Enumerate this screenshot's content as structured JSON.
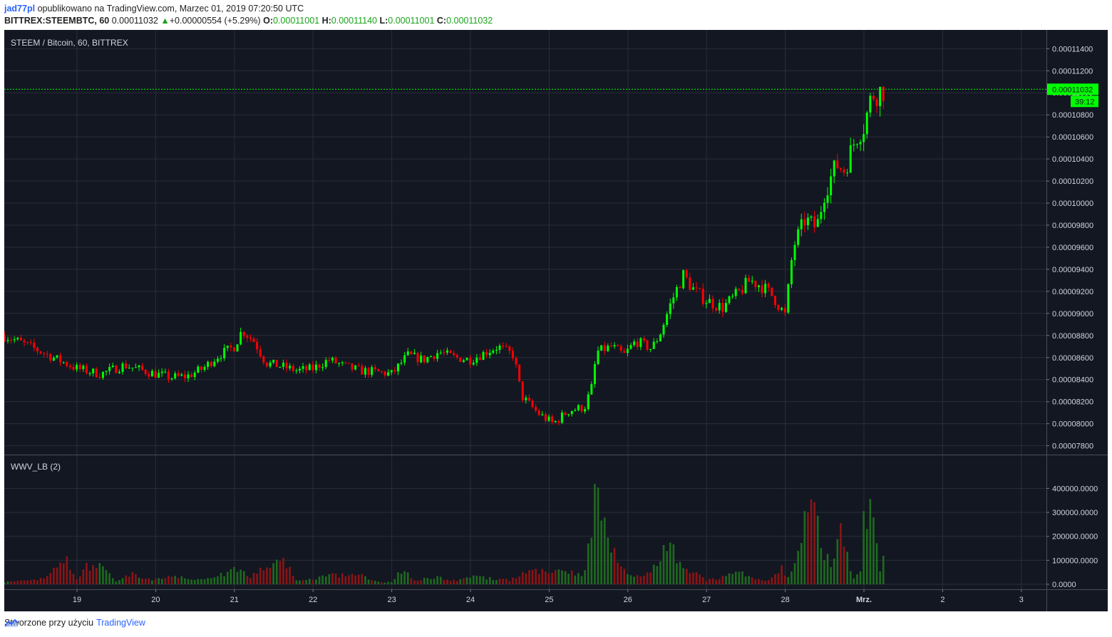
{
  "header": {
    "author": "jad77pl",
    "published": "opublikowano na TradingView.com, Marzec 01, 2019 07:20:50 UTC",
    "symbol": "BITTREX:STEEMBTC, 60",
    "last": "0.00011032",
    "change": "+0.00000554 (+5.29%)",
    "o_label": "O:",
    "o_value": "0.00011001",
    "h_label": "H:",
    "h_value": "0.00011140",
    "l_label": "L:",
    "l_value": "0.00011001",
    "c_label": "C:",
    "c_value": "0.00011032"
  },
  "footer": {
    "made_with": "Stworzone przy użyciu",
    "brand": "TradingView"
  },
  "colors": {
    "bg": "#131722",
    "grid": "#2a2e39",
    "up": "#00ff00",
    "down": "#ff0000",
    "vol_up": "#1e6b1e",
    "vol_down": "#8b1515",
    "text": "#d1d4dc"
  },
  "chart_data": {
    "type": "candlestick",
    "title": "STEEM / Bitcoin, 60, BITTREX",
    "price_axis_ticks": [
      "0.00011400",
      "0.00011200",
      "0.00011000",
      "0.00010800",
      "0.00010600",
      "0.00010400",
      "0.00010200",
      "0.00010000",
      "0.00009800",
      "0.00009600",
      "0.00009400",
      "0.00009200",
      "0.00009000",
      "0.00008800",
      "0.00008600",
      "0.00008400",
      "0.00008200",
      "0.00008000",
      "0.00007800"
    ],
    "price_ylim": [
      7.72e-05,
      0.0001157
    ],
    "last_price_label": "0.00011032",
    "last_price": 0.00011032,
    "countdown_label": "39:12",
    "x_ticks": [
      "19",
      "20",
      "21",
      "22",
      "23",
      "24",
      "25",
      "26",
      "27",
      "28",
      "Mrz.",
      "2",
      "3"
    ],
    "x_tick_day_offsets": [
      0,
      1,
      2,
      3,
      4,
      5,
      6,
      7,
      8,
      9,
      10,
      11,
      12
    ],
    "xlim_days": [
      -0.92,
      12.55
    ],
    "price_keypoints": [
      [
        -0.92,
        8.8e-05
      ],
      [
        -0.6,
        8.7e-05
      ],
      [
        -0.3,
        8.6e-05
      ],
      [
        0,
        8.5e-05
      ],
      [
        0.3,
        8.45e-05
      ],
      [
        0.6,
        8.53e-05
      ],
      [
        1.0,
        8.45e-05
      ],
      [
        1.2,
        8.42e-05
      ],
      [
        1.4,
        8.43e-05
      ],
      [
        1.6,
        8.5e-05
      ],
      [
        1.8,
        8.62e-05
      ],
      [
        2.0,
        8.7e-05
      ],
      [
        2.1,
        8.85e-05
      ],
      [
        2.25,
        8.75e-05
      ],
      [
        2.4,
        8.55e-05
      ],
      [
        2.6,
        8.52e-05
      ],
      [
        2.8,
        8.48e-05
      ],
      [
        3.0,
        8.5e-05
      ],
      [
        3.2,
        8.58e-05
      ],
      [
        3.4,
        8.52e-05
      ],
      [
        3.6,
        8.48e-05
      ],
      [
        3.8,
        8.47e-05
      ],
      [
        4.0,
        8.45e-05
      ],
      [
        4.2,
        8.62e-05
      ],
      [
        4.4,
        8.58e-05
      ],
      [
        4.6,
        8.65e-05
      ],
      [
        4.8,
        8.6e-05
      ],
      [
        5.0,
        8.58e-05
      ],
      [
        5.2,
        8.65e-05
      ],
      [
        5.35,
        8.7e-05
      ],
      [
        5.55,
        8.62e-05
      ],
      [
        5.65,
        8.25e-05
      ],
      [
        5.85,
        8.1e-05
      ],
      [
        6.05,
        8e-05
      ],
      [
        6.25,
        8.12e-05
      ],
      [
        6.45,
        8.15e-05
      ],
      [
        6.55,
        8.35e-05
      ],
      [
        6.6,
        8.65e-05
      ],
      [
        6.8,
        8.7e-05
      ],
      [
        6.95,
        8.62e-05
      ],
      [
        7.1,
        8.75e-05
      ],
      [
        7.3,
        8.68e-05
      ],
      [
        7.4,
        8.8e-05
      ],
      [
        7.55,
        9.1e-05
      ],
      [
        7.7,
        9.35e-05
      ],
      [
        7.85,
        9.2e-05
      ],
      [
        8.0,
        9.12e-05
      ],
      [
        8.2,
        9.05e-05
      ],
      [
        8.4,
        9.18e-05
      ],
      [
        8.55,
        9.3e-05
      ],
      [
        8.7,
        9.25e-05
      ],
      [
        8.85,
        9.15e-05
      ],
      [
        9.0,
        8.98e-05
      ],
      [
        9.1,
        9.6e-05
      ],
      [
        9.25,
        9.85e-05
      ],
      [
        9.4,
        9.78e-05
      ],
      [
        9.5,
        0.000101
      ],
      [
        9.65,
        0.0001035
      ],
      [
        9.75,
        0.000103
      ],
      [
        9.9,
        0.000106
      ],
      [
        10.0,
        0.000107
      ],
      [
        10.1,
        0.0001098
      ],
      [
        10.25,
        0.0001103
      ]
    ],
    "volume_axis_ticks": [
      "400000.0000",
      "300000.0000",
      "200000.0000",
      "100000.0000",
      "0.0000"
    ],
    "volume_ylim": [
      0,
      440000
    ],
    "volume_title": "WWV_LB (2)",
    "volume_keypoints": [
      [
        -0.9,
        10000
      ],
      [
        -0.5,
        18000
      ],
      [
        -0.3,
        60000
      ],
      [
        -0.15,
        115000
      ],
      [
        0,
        20000
      ],
      [
        0.1,
        75000
      ],
      [
        0.3,
        80000
      ],
      [
        0.5,
        12000
      ],
      [
        0.7,
        45000
      ],
      [
        0.9,
        20000
      ],
      [
        1.2,
        30000
      ],
      [
        1.5,
        25000
      ],
      [
        1.8,
        35000
      ],
      [
        2.0,
        70000
      ],
      [
        2.2,
        35000
      ],
      [
        2.4,
        85000
      ],
      [
        2.6,
        115000
      ],
      [
        2.8,
        15000
      ],
      [
        3.0,
        22000
      ],
      [
        3.2,
        40000
      ],
      [
        3.4,
        38000
      ],
      [
        3.6,
        45000
      ],
      [
        3.8,
        12000
      ],
      [
        4.0,
        8000
      ],
      [
        4.1,
        65000
      ],
      [
        4.3,
        20000
      ],
      [
        4.6,
        30000
      ],
      [
        4.8,
        15000
      ],
      [
        5.0,
        35000
      ],
      [
        5.3,
        25000
      ],
      [
        5.5,
        18000
      ],
      [
        5.75,
        60000
      ],
      [
        6.05,
        60000
      ],
      [
        6.25,
        50000
      ],
      [
        6.45,
        40000
      ],
      [
        6.55,
        300000
      ],
      [
        6.6,
        440000
      ],
      [
        6.8,
        170000
      ],
      [
        7.0,
        35000
      ],
      [
        7.3,
        50000
      ],
      [
        7.5,
        200000
      ],
      [
        7.7,
        60000
      ],
      [
        7.9,
        40000
      ],
      [
        8.0,
        18000
      ],
      [
        8.2,
        30000
      ],
      [
        8.4,
        55000
      ],
      [
        8.6,
        25000
      ],
      [
        8.8,
        18000
      ],
      [
        8.95,
        75000
      ],
      [
        9.05,
        20000
      ],
      [
        9.15,
        130000
      ],
      [
        9.25,
        300000
      ],
      [
        9.35,
        340000
      ],
      [
        9.45,
        180000
      ],
      [
        9.6,
        60000
      ],
      [
        9.7,
        260000
      ],
      [
        9.85,
        20000
      ],
      [
        9.95,
        50000
      ],
      [
        10.0,
        300000
      ],
      [
        10.1,
        330000
      ],
      [
        10.2,
        50000
      ],
      [
        10.28,
        140000
      ]
    ]
  }
}
